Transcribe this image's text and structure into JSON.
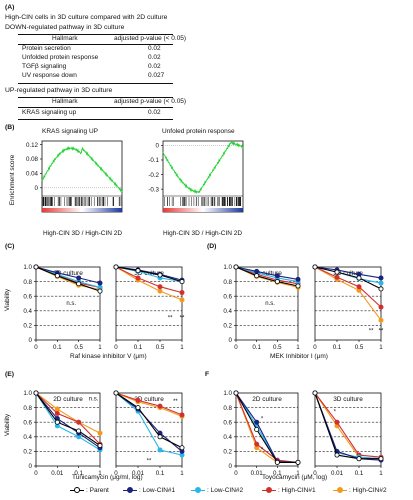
{
  "panelA": {
    "label": "(A)",
    "intro": "High-CIN cells in 3D culture compared with 2D culture",
    "down_title": "DOWN-regulated pathway in 3D culture",
    "col_hallmark": "Hallmark",
    "col_padj": "adjusted p-value (< 0.05)",
    "down_rows": [
      {
        "name": "Protein secretion",
        "value": "0.02"
      },
      {
        "name": "Unfolded protein response",
        "value": "0.02"
      },
      {
        "name": "TGFβ signaling",
        "value": "0.02"
      },
      {
        "name": "UV response down",
        "value": "0.027"
      }
    ],
    "up_title": "UP-regulated pathway in 3D culture",
    "up_rows": [
      {
        "name": "KRAS signaling up",
        "value": "0.02"
      }
    ]
  },
  "panelB": {
    "label": "(B)",
    "ylabel": "Enrichment score",
    "plots": [
      {
        "title": "KRAS signaling UP",
        "yticks": [
          "0.12",
          "0.08",
          "0.04",
          "0"
        ],
        "xlabel": "High-CIN 3D / High-CIN 2D"
      },
      {
        "title": "Unfoled protein response",
        "yticks": [
          "0",
          "-0.1",
          "-0.2",
          "-0.3"
        ],
        "xlabel": "High-CIN 3D / High-CIN 2D"
      }
    ]
  },
  "panelC": {
    "label": "(C)",
    "ylabel": "Viability",
    "xlabel": "Raf kinase inhibitor V (μm)",
    "titles": [
      "2D culture",
      "3D culture"
    ],
    "xticks": [
      "0",
      "0.1",
      "0.5",
      "1"
    ],
    "yticks": [
      "1.0",
      "0.8",
      "0.6",
      "0.4",
      "0.2",
      "0"
    ],
    "ns": "n.s.",
    "sig": "**"
  },
  "panelD": {
    "label": "(D)",
    "xlabel": "MEK Inhibitor I (μm)",
    "titles": [
      "2D culture",
      "3D culture"
    ],
    "xticks": [
      "0",
      "0.1",
      "0.5",
      "1"
    ],
    "ns": "n.s.",
    "sig": "**"
  },
  "panelE": {
    "label": "(E)",
    "ylabel": "Viability",
    "xlabel": "Tunicamycin (μg/ml, log)",
    "titles": [
      "2D culture",
      "3D culture"
    ],
    "xticks": [
      "0",
      "0.01",
      "0.1",
      "1"
    ],
    "yticks": [
      "1.0",
      "0.8",
      "0.6",
      "0.4",
      "0.2",
      "0"
    ],
    "ns": "n.s.",
    "sig": "**"
  },
  "panelF": {
    "label": "F",
    "xlabel": "Toyocamycin (μM, log)",
    "titles": [
      "2D culture",
      "3D culture"
    ],
    "xticks": [
      "0",
      "0.01",
      "0.1",
      "1"
    ],
    "sig": "*"
  },
  "legend": [
    {
      "label": ": Parent",
      "color": "#000000"
    },
    {
      "label": ": Low-CIN#1",
      "color": "#1a237e"
    },
    {
      "label": ": Low-CIN#2",
      "color": "#29b6e8"
    },
    {
      "label": ": High-CIN#1",
      "color": "#d32f2f"
    },
    {
      "label": ": High-CIN#2",
      "color": "#f39a1c"
    }
  ],
  "chart_data": [
    {
      "type": "line",
      "title": "2D culture",
      "xlabel": "Raf kinase inhibitor V (μm)",
      "ylabel": "Viability",
      "categories": [
        "0",
        "0.1",
        "0.5",
        "1"
      ],
      "ylim": [
        0,
        1.0
      ],
      "series": [
        {
          "name": "Parent",
          "values": [
            1.0,
            0.88,
            0.77,
            0.67
          ]
        },
        {
          "name": "Low-CIN#1",
          "values": [
            1.0,
            0.92,
            0.85,
            0.78
          ]
        },
        {
          "name": "Low-CIN#2",
          "values": [
            1.0,
            0.9,
            0.8,
            0.72
          ]
        },
        {
          "name": "High-CIN#1",
          "values": [
            1.0,
            0.89,
            0.78,
            0.72
          ]
        },
        {
          "name": "High-CIN#2",
          "values": [
            1.0,
            0.87,
            0.75,
            0.69
          ]
        }
      ]
    },
    {
      "type": "line",
      "title": "3D culture",
      "xlabel": "Raf kinase inhibitor V (μm)",
      "ylabel": "Viability",
      "categories": [
        "0",
        "0.1",
        "0.5",
        "1"
      ],
      "ylim": [
        0,
        1.0
      ],
      "series": [
        {
          "name": "Parent",
          "values": [
            1.0,
            0.95,
            0.89,
            0.8
          ]
        },
        {
          "name": "Low-CIN#1",
          "values": [
            1.0,
            0.96,
            0.9,
            0.82
          ]
        },
        {
          "name": "Low-CIN#2",
          "values": [
            1.0,
            0.94,
            0.85,
            0.8
          ]
        },
        {
          "name": "High-CIN#1",
          "values": [
            1.0,
            0.85,
            0.73,
            0.65
          ]
        },
        {
          "name": "High-CIN#2",
          "values": [
            1.0,
            0.82,
            0.67,
            0.55
          ]
        }
      ]
    },
    {
      "type": "line",
      "title": "2D culture",
      "xlabel": "MEK Inhibitor I (μm)",
      "ylabel": "Viability",
      "categories": [
        "0",
        "0.1",
        "0.5",
        "1"
      ],
      "ylim": [
        0,
        1.0
      ],
      "series": [
        {
          "name": "Parent",
          "values": [
            1.0,
            0.88,
            0.8,
            0.74
          ]
        },
        {
          "name": "Low-CIN#1",
          "values": [
            1.0,
            0.94,
            0.88,
            0.83
          ]
        },
        {
          "name": "Low-CIN#2",
          "values": [
            1.0,
            0.92,
            0.85,
            0.8
          ]
        },
        {
          "name": "High-CIN#1",
          "values": [
            1.0,
            0.9,
            0.82,
            0.77
          ]
        },
        {
          "name": "High-CIN#2",
          "values": [
            1.0,
            0.87,
            0.79,
            0.72
          ]
        }
      ]
    },
    {
      "type": "line",
      "title": "3D culture",
      "xlabel": "MEK Inhibitor I (μm)",
      "ylabel": "Viability",
      "categories": [
        "0",
        "0.1",
        "0.5",
        "1"
      ],
      "ylim": [
        0,
        1.0
      ],
      "series": [
        {
          "name": "Parent",
          "values": [
            1.0,
            0.93,
            0.85,
            0.7
          ]
        },
        {
          "name": "Low-CIN#1",
          "values": [
            1.0,
            0.96,
            0.9,
            0.85
          ]
        },
        {
          "name": "Low-CIN#2",
          "values": [
            1.0,
            0.93,
            0.84,
            0.78
          ]
        },
        {
          "name": "High-CIN#1",
          "values": [
            1.0,
            0.86,
            0.73,
            0.45
          ]
        },
        {
          "name": "High-CIN#2",
          "values": [
            1.0,
            0.83,
            0.68,
            0.27
          ]
        }
      ]
    },
    {
      "type": "line",
      "title": "2D culture",
      "xlabel": "Tunicamycin (μg/ml, log)",
      "ylabel": "Viability",
      "categories": [
        "0",
        "0.01",
        "0.1",
        "1"
      ],
      "ylim": [
        0,
        1.0
      ],
      "series": [
        {
          "name": "Parent",
          "values": [
            1.0,
            0.6,
            0.48,
            0.28
          ]
        },
        {
          "name": "Low-CIN#1",
          "values": [
            1.0,
            0.65,
            0.45,
            0.25
          ]
        },
        {
          "name": "Low-CIN#2",
          "values": [
            1.0,
            0.55,
            0.4,
            0.22
          ]
        },
        {
          "name": "High-CIN#1",
          "values": [
            1.0,
            0.72,
            0.6,
            0.3
          ]
        },
        {
          "name": "High-CIN#2",
          "values": [
            1.0,
            0.78,
            0.6,
            0.45
          ]
        }
      ]
    },
    {
      "type": "line",
      "title": "3D culture",
      "xlabel": "Tunicamycin (μg/ml, log)",
      "ylabel": "Viability",
      "categories": [
        "0",
        "0.01",
        "0.1",
        "1"
      ],
      "ylim": [
        0,
        1.0
      ],
      "series": [
        {
          "name": "Parent",
          "values": [
            1.0,
            0.8,
            0.4,
            0.25
          ]
        },
        {
          "name": "Low-CIN#1",
          "values": [
            1.0,
            0.78,
            0.45,
            0.2
          ]
        },
        {
          "name": "Low-CIN#2",
          "values": [
            1.0,
            0.75,
            0.22,
            0.15
          ]
        },
        {
          "name": "High-CIN#1",
          "values": [
            1.0,
            0.9,
            0.82,
            0.7
          ]
        },
        {
          "name": "High-CIN#2",
          "values": [
            1.0,
            0.88,
            0.8,
            0.68
          ]
        }
      ]
    },
    {
      "type": "line",
      "title": "2D culture",
      "xlabel": "Toyocamycin (μM, log)",
      "ylabel": "Viability",
      "categories": [
        "0",
        "0.01",
        "0.1",
        "1"
      ],
      "ylim": [
        0,
        1.0
      ],
      "series": [
        {
          "name": "Parent",
          "values": [
            1.0,
            0.5,
            0.05,
            0.05
          ]
        },
        {
          "name": "Low-CIN#1",
          "values": [
            1.0,
            0.6,
            0.06,
            0.05
          ]
        },
        {
          "name": "Low-CIN#2",
          "values": [
            1.0,
            0.55,
            0.05,
            0.05
          ]
        },
        {
          "name": "High-CIN#1",
          "values": [
            1.0,
            0.3,
            0.08,
            0.05
          ]
        },
        {
          "name": "High-CIN#2",
          "values": [
            1.0,
            0.25,
            0.05,
            0.05
          ]
        }
      ]
    },
    {
      "type": "line",
      "title": "3D culture",
      "xlabel": "Toyocamycin (μM, log)",
      "ylabel": "Viability",
      "categories": [
        "0",
        "0.01",
        "0.1",
        "1"
      ],
      "ylim": [
        0,
        1.0
      ],
      "series": [
        {
          "name": "Parent",
          "values": [
            1.0,
            0.15,
            0.1,
            0.1
          ]
        },
        {
          "name": "Low-CIN#1",
          "values": [
            1.0,
            0.2,
            0.1,
            0.08
          ]
        },
        {
          "name": "Low-CIN#2",
          "values": [
            1.0,
            0.18,
            0.12,
            0.1
          ]
        },
        {
          "name": "High-CIN#1",
          "values": [
            1.0,
            0.6,
            0.15,
            0.12
          ]
        },
        {
          "name": "High-CIN#2",
          "values": [
            1.0,
            0.55,
            0.12,
            0.1
          ]
        }
      ]
    }
  ]
}
